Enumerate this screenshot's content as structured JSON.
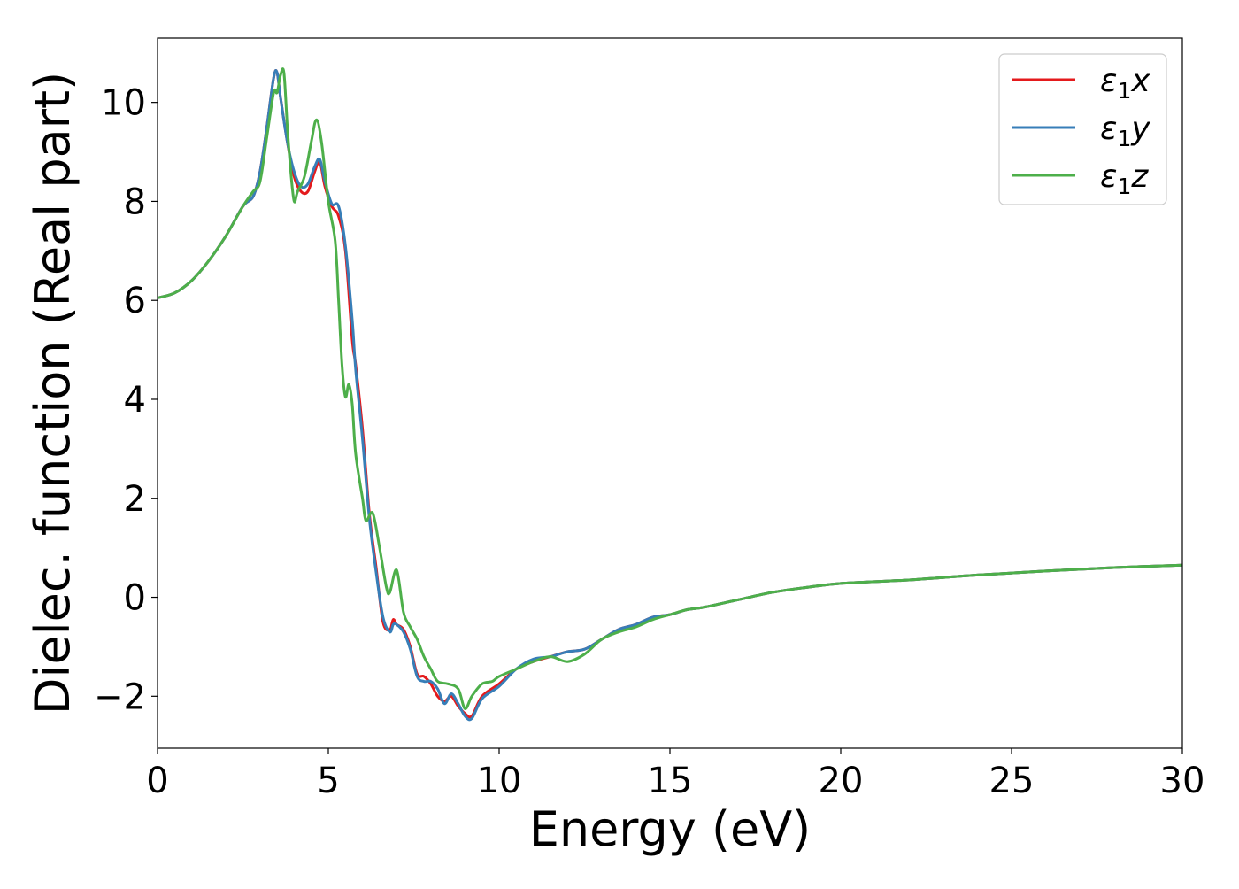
{
  "chart_data": {
    "type": "line",
    "title": "",
    "xlabel": "Energy (eV)",
    "ylabel": "Dielec. function (Real part)",
    "xlim": [
      0,
      30
    ],
    "ylim": [
      -3.05,
      11.3
    ],
    "xticks": [
      0,
      5,
      10,
      15,
      20,
      25,
      30
    ],
    "xtick_labels": [
      "0",
      "5",
      "10",
      "15",
      "20",
      "25",
      "30"
    ],
    "yticks": [
      -2,
      0,
      2,
      4,
      6,
      8,
      10
    ],
    "ytick_labels": [
      "−2",
      "0",
      "2",
      "4",
      "6",
      "8",
      "10"
    ],
    "grid": false,
    "legend_position": "top-right",
    "series": [
      {
        "name": "ε₁x",
        "legend": {
          "base": "ε",
          "sub": "1",
          "var": "x"
        },
        "color": "#e41a1c",
        "x": [
          0,
          0.5,
          1.0,
          1.5,
          2.0,
          2.5,
          2.8,
          3.0,
          3.2,
          3.4,
          3.5,
          3.6,
          3.8,
          4.0,
          4.2,
          4.4,
          4.6,
          4.75,
          4.9,
          5.1,
          5.3,
          5.5,
          5.7,
          5.8,
          6.0,
          6.2,
          6.4,
          6.6,
          6.8,
          6.9,
          7.0,
          7.2,
          7.4,
          7.6,
          7.8,
          8.0,
          8.2,
          8.4,
          8.6,
          8.8,
          9.0,
          9.2,
          9.5,
          10.0,
          10.5,
          11.0,
          11.5,
          12.0,
          12.5,
          13.0,
          13.5,
          14.0,
          14.5,
          15.0,
          15.5,
          16.0,
          17.0,
          18.0,
          19.0,
          20.0,
          22.0,
          24.0,
          26.0,
          28.0,
          30.0
        ],
        "y": [
          6.05,
          6.15,
          6.4,
          6.8,
          7.3,
          7.9,
          8.1,
          8.6,
          9.5,
          10.5,
          10.6,
          10.1,
          9.2,
          8.5,
          8.2,
          8.2,
          8.6,
          8.8,
          8.3,
          7.9,
          7.7,
          7.0,
          5.2,
          4.7,
          3.4,
          1.7,
          0.6,
          -0.5,
          -0.65,
          -0.45,
          -0.55,
          -0.65,
          -1.0,
          -1.55,
          -1.6,
          -1.75,
          -2.0,
          -2.1,
          -2.0,
          -2.2,
          -2.35,
          -2.4,
          -2.0,
          -1.75,
          -1.45,
          -1.3,
          -1.2,
          -1.1,
          -1.05,
          -0.85,
          -0.65,
          -0.55,
          -0.4,
          -0.35,
          -0.25,
          -0.2,
          -0.05,
          0.1,
          0.2,
          0.28,
          0.35,
          0.45,
          0.53,
          0.6,
          0.65
        ]
      },
      {
        "name": "ε₁y",
        "legend": {
          "base": "ε",
          "sub": "1",
          "var": "y"
        },
        "color": "#377eb8",
        "x": [
          0,
          0.5,
          1.0,
          1.5,
          2.0,
          2.5,
          2.8,
          3.0,
          3.2,
          3.4,
          3.5,
          3.6,
          3.8,
          4.0,
          4.2,
          4.4,
          4.6,
          4.75,
          4.9,
          5.1,
          5.3,
          5.5,
          5.7,
          5.8,
          6.0,
          6.2,
          6.4,
          6.6,
          6.8,
          6.9,
          7.0,
          7.2,
          7.4,
          7.6,
          7.8,
          8.0,
          8.2,
          8.4,
          8.6,
          8.8,
          9.0,
          9.2,
          9.5,
          10.0,
          10.5,
          11.0,
          11.5,
          12.0,
          12.5,
          13.0,
          13.5,
          14.0,
          14.5,
          15.0,
          15.5,
          16.0,
          17.0,
          18.0,
          19.0,
          20.0,
          22.0,
          24.0,
          26.0,
          28.0,
          30.0
        ],
        "y": [
          6.05,
          6.15,
          6.4,
          6.8,
          7.3,
          7.9,
          8.1,
          8.6,
          9.5,
          10.5,
          10.6,
          10.1,
          9.2,
          8.6,
          8.3,
          8.35,
          8.7,
          8.85,
          8.4,
          7.95,
          7.9,
          7.1,
          5.6,
          4.6,
          3.2,
          1.6,
          0.5,
          -0.4,
          -0.7,
          -0.55,
          -0.55,
          -0.7,
          -1.05,
          -1.6,
          -1.7,
          -1.7,
          -1.85,
          -2.15,
          -1.95,
          -2.15,
          -2.4,
          -2.45,
          -2.05,
          -1.8,
          -1.45,
          -1.25,
          -1.2,
          -1.1,
          -1.05,
          -0.85,
          -0.65,
          -0.55,
          -0.4,
          -0.35,
          -0.25,
          -0.2,
          -0.05,
          0.1,
          0.2,
          0.28,
          0.35,
          0.45,
          0.53,
          0.6,
          0.65
        ]
      },
      {
        "name": "ε₁z",
        "legend": {
          "base": "ε",
          "sub": "1",
          "var": "z"
        },
        "color": "#4daf4a",
        "x": [
          0,
          0.5,
          1.0,
          1.5,
          2.0,
          2.5,
          2.8,
          3.0,
          3.2,
          3.4,
          3.5,
          3.6,
          3.7,
          3.8,
          3.9,
          4.0,
          4.1,
          4.3,
          4.5,
          4.65,
          4.8,
          5.0,
          5.2,
          5.3,
          5.4,
          5.5,
          5.6,
          5.7,
          5.8,
          6.0,
          6.1,
          6.3,
          6.5,
          6.7,
          6.8,
          7.0,
          7.2,
          7.4,
          7.6,
          7.8,
          8.0,
          8.2,
          8.5,
          8.8,
          9.0,
          9.2,
          9.5,
          9.8,
          10.0,
          10.5,
          11.0,
          11.5,
          12.0,
          12.5,
          13.0,
          13.5,
          14.0,
          14.5,
          15.0,
          15.5,
          16.0,
          17.0,
          18.0,
          19.0,
          20.0,
          22.0,
          24.0,
          26.0,
          28.0,
          30.0
        ],
        "y": [
          6.05,
          6.15,
          6.4,
          6.8,
          7.3,
          7.9,
          8.2,
          8.4,
          9.3,
          10.2,
          10.2,
          10.55,
          10.6,
          9.5,
          8.6,
          8.0,
          8.2,
          8.5,
          9.2,
          9.65,
          9.2,
          8.0,
          7.2,
          6.0,
          4.7,
          4.05,
          4.3,
          3.9,
          2.9,
          2.0,
          1.55,
          1.7,
          1.0,
          0.2,
          0.1,
          0.55,
          -0.3,
          -0.6,
          -0.85,
          -1.2,
          -1.45,
          -1.7,
          -1.75,
          -1.85,
          -2.25,
          -2.0,
          -1.75,
          -1.7,
          -1.6,
          -1.45,
          -1.3,
          -1.2,
          -1.3,
          -1.15,
          -0.85,
          -0.7,
          -0.6,
          -0.45,
          -0.35,
          -0.25,
          -0.2,
          -0.05,
          0.1,
          0.2,
          0.28,
          0.35,
          0.45,
          0.53,
          0.6,
          0.65
        ]
      }
    ]
  }
}
